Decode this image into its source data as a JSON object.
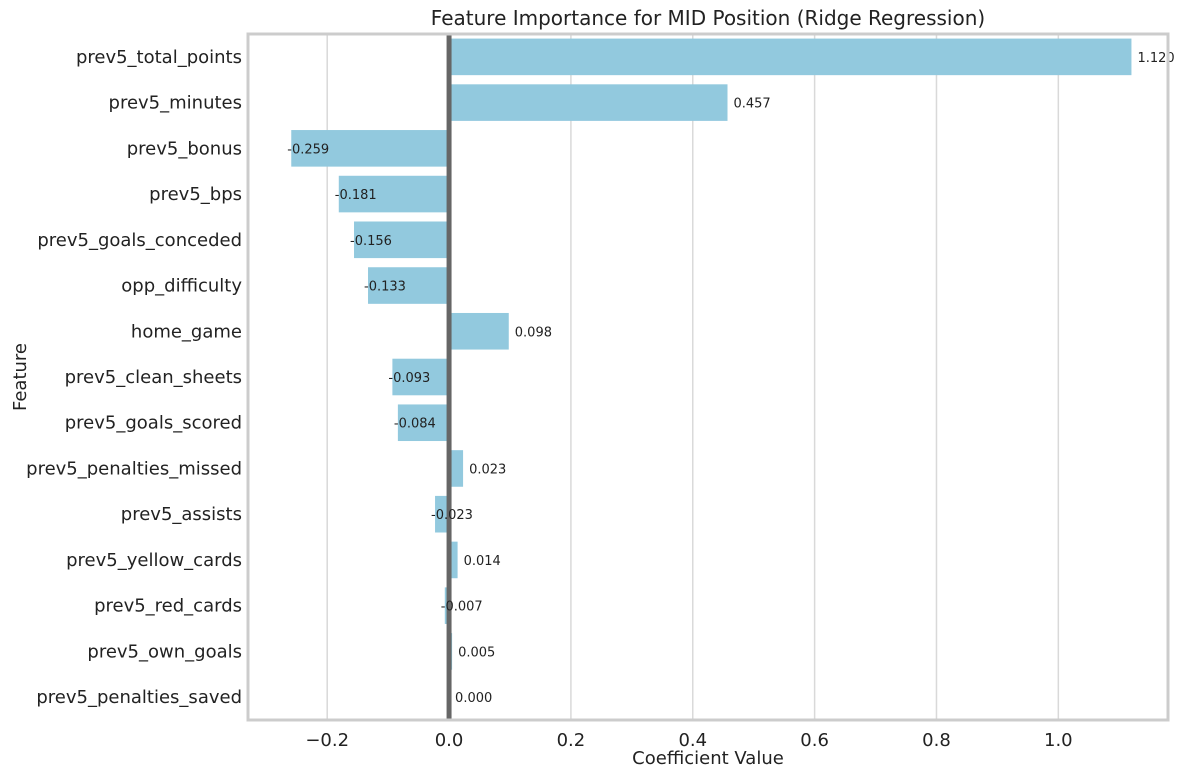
{
  "chart_data": {
    "type": "bar",
    "orientation": "horizontal",
    "title": "Feature Importance for MID Position (Ridge Regression)",
    "xlabel": "Coefficient Value",
    "ylabel": "Feature",
    "xlim": [
      -0.33,
      1.18
    ],
    "xticks": [
      -0.2,
      0.0,
      0.2,
      0.4,
      0.6,
      0.8,
      1.0
    ],
    "xtick_labels": [
      "−0.2",
      "0.0",
      "0.2",
      "0.4",
      "0.6",
      "0.8",
      "1.0"
    ],
    "grid": "vertical",
    "bar_color": "#92c9de",
    "zero_line_color": "#666666",
    "categories": [
      "prev5_total_points",
      "prev5_minutes",
      "prev5_bonus",
      "prev5_bps",
      "prev5_goals_conceded",
      "opp_difficulty",
      "home_game",
      "prev5_clean_sheets",
      "prev5_goals_scored",
      "prev5_penalties_missed",
      "prev5_assists",
      "prev5_yellow_cards",
      "prev5_red_cards",
      "prev5_own_goals",
      "prev5_penalties_saved"
    ],
    "values": [
      1.12,
      0.457,
      -0.259,
      -0.181,
      -0.156,
      -0.133,
      0.098,
      -0.093,
      -0.084,
      0.023,
      -0.023,
      0.014,
      -0.007,
      0.005,
      0.0
    ],
    "data_labels": [
      "1.120",
      "0.457",
      "-0.259",
      "-0.181",
      "-0.156",
      "-0.133",
      "0.098",
      "-0.093",
      "-0.084",
      "0.023",
      "-0.023",
      "0.014",
      "-0.007",
      "0.005",
      "0.000"
    ]
  }
}
